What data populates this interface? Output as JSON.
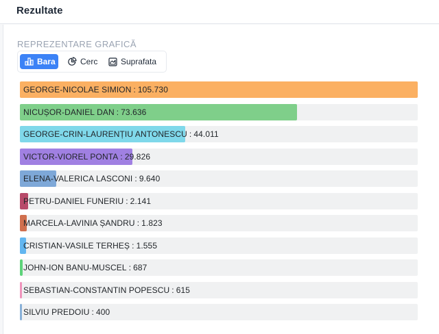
{
  "header": {
    "title": "Rezultate"
  },
  "section": {
    "label": "REPREZENTARE GRAFICĂ"
  },
  "tabs": [
    {
      "label": "Bara",
      "icon": "bar-chart-icon",
      "active": true
    },
    {
      "label": "Cerc",
      "icon": "pie-chart-icon",
      "active": false
    },
    {
      "label": "Suprafata",
      "icon": "area-chart-icon",
      "active": false
    }
  ],
  "colors": {
    "accent": "#3b82f6"
  },
  "chart_data": {
    "type": "bar",
    "orientation": "horizontal",
    "title": "",
    "xlabel": "",
    "ylabel": "",
    "xlim": [
      0,
      105730
    ],
    "grid": false,
    "categories": [
      "GEORGE-NICOLAE SIMION",
      "NICUȘOR-DANIEL DAN",
      "GEORGE-CRIN-LAURENȚIU ANTONESCU",
      "VICTOR-VIOREL PONTA",
      "ELENA-VALERICA LASCONI",
      "PETRU-DANIEL FUNERIU",
      "MARCELA-LAVINIA ȘANDRU",
      "CRISTIAN-VASILE TERHEȘ",
      "JOHN-ION BANU-MUSCEL",
      "SEBASTIAN-CONSTANTIN POPESCU",
      "SILVIU PREDOIU"
    ],
    "values": [
      105730,
      73636,
      44011,
      29826,
      9640,
      2141,
      1823,
      1555,
      687,
      615,
      400
    ],
    "value_labels": [
      "105.730",
      "73.636",
      "44.011",
      "29.826",
      "9.640",
      "2.141",
      "1.823",
      "1.555",
      "687",
      "615",
      "400"
    ],
    "separator": ":",
    "colors": [
      "#fbb062",
      "#7fcf8a",
      "#7fd8ea",
      "#a080e2",
      "#7ea8d8",
      "#b84a6a",
      "#d06f4e",
      "#62b6f0",
      "#5ed37a",
      "#ef93bb",
      "#88b0d8"
    ]
  }
}
